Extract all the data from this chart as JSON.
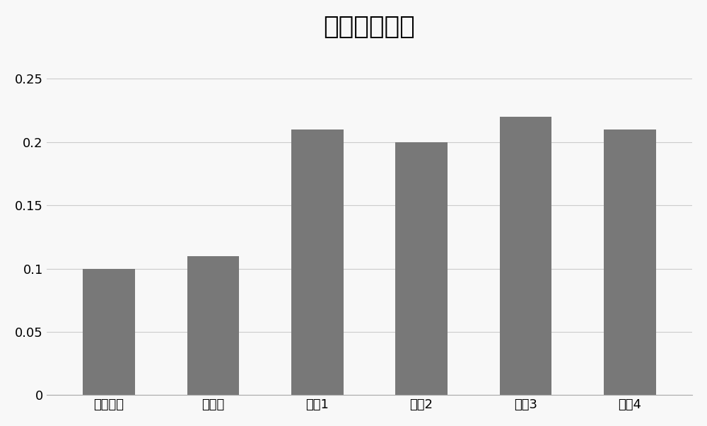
{
  "categories": [
    "国家标准",
    "石墨料",
    "实兘1",
    "实兘2",
    "实兘3",
    "实兘4"
  ],
  "values": [
    0.1,
    0.11,
    0.21,
    0.2,
    0.22,
    0.21
  ],
  "bar_color": "#787878",
  "title": "压缩强度对比",
  "title_fontsize": 26,
  "xlabel": "",
  "ylabel": "",
  "ylim": [
    0,
    0.27
  ],
  "yticks": [
    0,
    0.05,
    0.1,
    0.15,
    0.2,
    0.25
  ],
  "tick_fontsize": 13,
  "background_color": "#f8f8f8",
  "grid_color": "#cccccc",
  "bar_width": 0.5
}
